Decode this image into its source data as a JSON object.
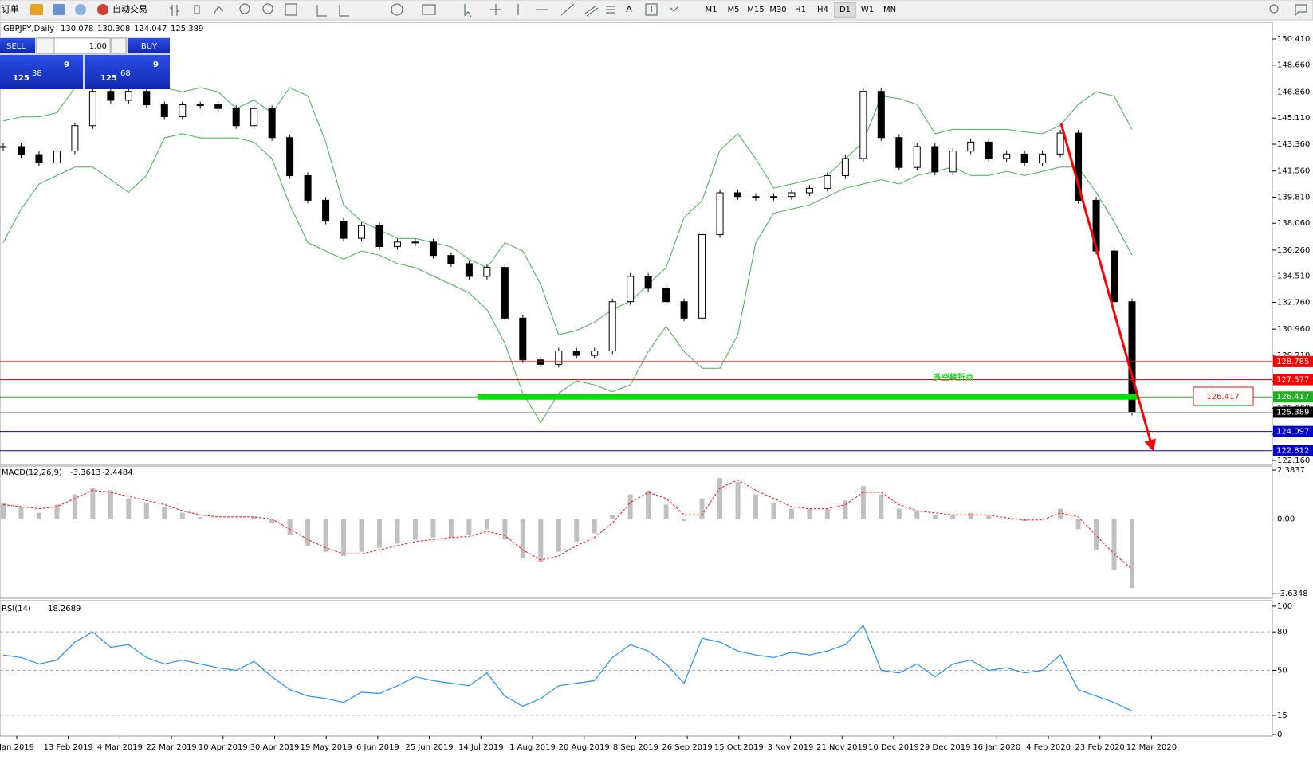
{
  "toolbar": {
    "orders": "订单",
    "autotrade": "自动交易",
    "text_tool": "A",
    "label_tool": "T",
    "timeframes": [
      "M1",
      "M5",
      "M15",
      "M30",
      "H1",
      "H4",
      "D1",
      "W1",
      "MN"
    ]
  },
  "trade_panel": {
    "sell": "SELL",
    "buy": "BUY",
    "lot": "1.00",
    "sell_price": {
      "prefix": 125,
      "pips": 38,
      "fraction": 9
    },
    "buy_price": {
      "prefix": 125,
      "pips": 68,
      "fraction": 9
    }
  },
  "annotation": {
    "text": "多空转折点"
  },
  "date_axis": [
    "Jan 2019",
    "13 Feb 2019",
    "4 Mar 2019",
    "22 Mar 2019",
    "10 Apr 2019",
    "30 Apr 2019",
    "19 May 2019",
    "6 Jun 2019",
    "25 Jun 2019",
    "14 Jul 2019",
    "1 Aug 2019",
    "20 Aug 2019",
    "8 Sep 2019",
    "26 Sep 2019",
    "15 Oct 2019",
    "3 Nov 2019",
    "21 Nov 2019",
    "10 Dec 2019",
    "29 Dec 2019",
    "16 Jan 2020",
    "4 Feb 2020",
    "23 Feb 2020",
    "12 Mar 2020"
  ],
  "chart_data": [
    {
      "type": "candlestick",
      "title": "GBPJPY,Daily",
      "ohlc_header": [
        "130.078",
        "130.308",
        "124.047",
        "125.389"
      ],
      "color": "#000000",
      "close": [
        143.2,
        142.66,
        142.1,
        142.9,
        144.6,
        146.9,
        146.3,
        146.9,
        146.0,
        145.2,
        146.0,
        146.0,
        145.75,
        144.6,
        145.75,
        143.8,
        141.25,
        139.6,
        138.2,
        137.05,
        137.9,
        136.5,
        136.8,
        136.8,
        135.9,
        135.35,
        134.5,
        135.1,
        131.7,
        128.9,
        128.6,
        129.5,
        129.2,
        129.5,
        132.8,
        134.5,
        133.7,
        132.8,
        131.7,
        137.3,
        140.1,
        139.85,
        139.85,
        139.85,
        140.1,
        140.4,
        141.25,
        142.4,
        146.9,
        143.8,
        141.8,
        143.2,
        141.5,
        142.9,
        143.5,
        142.4,
        142.7,
        142.1,
        142.7,
        144.1,
        139.6,
        136.2,
        132.8,
        125.389
      ],
      "bands": {
        "color": "#3cb44b",
        "upper": [
          144.91,
          145.19,
          145.19,
          145.47,
          147.15,
          147.71,
          147.43,
          147.15,
          147.43,
          147.15,
          146.87,
          147.15,
          146.87,
          145.75,
          146.31,
          145.47,
          147.15,
          146.59,
          143.5,
          139.29,
          138.17,
          137.61,
          137.04,
          137.04,
          136.76,
          136.48,
          135.64,
          135.08,
          136.76,
          136.2,
          133.96,
          130.59,
          130.87,
          131.43,
          132.27,
          132.83,
          133.96,
          135.08,
          138.45,
          139.57,
          142.94,
          144.06,
          142.38,
          140.41,
          140.69,
          140.98,
          141.26,
          142.38,
          143.5,
          146.59,
          146.42,
          146.03,
          144.06,
          144.35,
          144.35,
          144.35,
          144.35,
          144.18,
          144.06,
          144.63,
          146.03,
          146.87,
          146.59,
          144.35
        ],
        "lower": [
          136.76,
          139.01,
          140.69,
          141.26,
          141.82,
          141.82,
          140.98,
          140.13,
          141.26,
          143.78,
          144.06,
          143.78,
          143.78,
          143.78,
          143.5,
          142.38,
          139.29,
          136.76,
          136.2,
          135.64,
          136.2,
          135.92,
          135.36,
          135.08,
          134.52,
          133.96,
          133.39,
          132.27,
          130.02,
          126.66,
          124.69,
          126.66,
          127.5,
          127.22,
          126.77,
          127.22,
          129.46,
          131.15,
          129.46,
          128.34,
          128.34,
          130.59,
          136.76,
          138.73,
          139.01,
          139.29,
          139.85,
          140.41,
          140.69,
          140.98,
          140.69,
          141.26,
          141.54,
          141.82,
          141.26,
          141.26,
          141.54,
          141.26,
          141.54,
          141.82,
          141.82,
          140.13,
          138.17,
          135.92
        ]
      },
      "levels": [
        {
          "value": 128.785,
          "color": "#ff0000"
        },
        {
          "value": 127.577,
          "color": "#ff0000"
        },
        {
          "value": 126.417,
          "color": "#22b022"
        },
        {
          "value": 125.389,
          "color": "#000000"
        },
        {
          "value": 124.097,
          "color": "#0000cc"
        },
        {
          "value": 122.812,
          "color": "#0000cc"
        }
      ],
      "ylim": [
        121.89,
        151.53
      ],
      "yticks": [
        {
          "value": 150.41,
          "label": "150.410"
        },
        {
          "value": 148.66,
          "label": "148.660"
        },
        {
          "value": 146.86,
          "label": "146.860"
        },
        {
          "value": 145.11,
          "label": "145.110"
        },
        {
          "value": 143.36,
          "label": "143.360"
        },
        {
          "value": 141.56,
          "label": "141.560"
        },
        {
          "value": 139.81,
          "label": "139.810"
        },
        {
          "value": 138.06,
          "label": "138.060"
        },
        {
          "value": 136.26,
          "label": "136.260"
        },
        {
          "value": 134.51,
          "label": "134.510"
        },
        {
          "value": 132.76,
          "label": "132.760"
        },
        {
          "value": 130.96,
          "label": "130.960"
        },
        {
          "value": 129.21,
          "label": "129.210"
        },
        {
          "value": 127.46,
          "label": "127.460"
        },
        {
          "value": 125.66,
          "label": "125.660"
        },
        {
          "value": 123.91,
          "label": "123.910"
        },
        {
          "value": 122.16,
          "label": "122.160"
        }
      ]
    },
    {
      "type": "macd",
      "title": "MACD(12,26,9)",
      "readout": [
        "-3.3613",
        "-2.4484"
      ],
      "color": "#c0c0c0",
      "signal_color": "#ff0000",
      "values": [
        0.8,
        0.6,
        0.3,
        0.7,
        1.2,
        1.5,
        1.4,
        1.0,
        0.8,
        0.6,
        0.3,
        0.1,
        0.0,
        0.0,
        0.1,
        -0.2,
        -0.8,
        -1.3,
        -1.6,
        -1.8,
        -1.6,
        -1.4,
        -1.2,
        -1.0,
        -0.9,
        -0.9,
        -0.8,
        -0.5,
        -1.0,
        -1.9,
        -2.1,
        -1.6,
        -1.1,
        -0.7,
        0.2,
        1.2,
        1.4,
        0.7,
        -0.1,
        1.0,
        2.0,
        1.8,
        1.2,
        0.8,
        0.5,
        0.5,
        0.5,
        0.9,
        1.6,
        1.2,
        0.5,
        0.4,
        0.2,
        0.2,
        0.3,
        0.2,
        0.0,
        -0.1,
        0.0,
        0.5,
        -0.5,
        -1.5,
        -2.5,
        -3.3613
      ],
      "signal": [
        0.7,
        0.6,
        0.5,
        0.6,
        1.0,
        1.4,
        1.3,
        1.1,
        0.9,
        0.7,
        0.4,
        0.2,
        0.1,
        0.1,
        0.1,
        0.0,
        -0.5,
        -1.0,
        -1.4,
        -1.7,
        -1.7,
        -1.5,
        -1.3,
        -1.1,
        -1.0,
        -0.9,
        -0.85,
        -0.6,
        -0.8,
        -1.5,
        -2.0,
        -1.8,
        -1.3,
        -0.9,
        -0.2,
        0.8,
        1.3,
        1.0,
        0.2,
        0.2,
        1.5,
        1.9,
        1.4,
        1.0,
        0.6,
        0.5,
        0.5,
        0.7,
        1.3,
        1.3,
        0.7,
        0.4,
        0.3,
        0.2,
        0.2,
        0.2,
        0.05,
        -0.05,
        -0.05,
        0.3,
        0.1,
        -0.8,
        -1.7,
        -2.4484
      ],
      "ylim": [
        -3.86,
        2.58
      ],
      "yticks": [
        2.3837,
        {
          "value": 0,
          "label": "0.00"
        },
        -3.6348
      ]
    },
    {
      "type": "line",
      "title": "RSI(14)",
      "readout": "18.2689",
      "color": "#1e90ff",
      "values": [
        62,
        60,
        55,
        58,
        72,
        80,
        68,
        70,
        60,
        55,
        58,
        55,
        52,
        50,
        57,
        45,
        35,
        30,
        28,
        25,
        33,
        32,
        38,
        45,
        42,
        40,
        38,
        48,
        30,
        22,
        28,
        38,
        40,
        42,
        60,
        70,
        65,
        55,
        40,
        75,
        72,
        65,
        62,
        60,
        64,
        62,
        65,
        70,
        85,
        50,
        48,
        55,
        45,
        55,
        58,
        50,
        52,
        48,
        50,
        62,
        35,
        30,
        25,
        18.2689
      ],
      "ylim": [
        -1.2,
        104.3
      ],
      "yticks": [
        100,
        80,
        50,
        15,
        0
      ]
    }
  ]
}
